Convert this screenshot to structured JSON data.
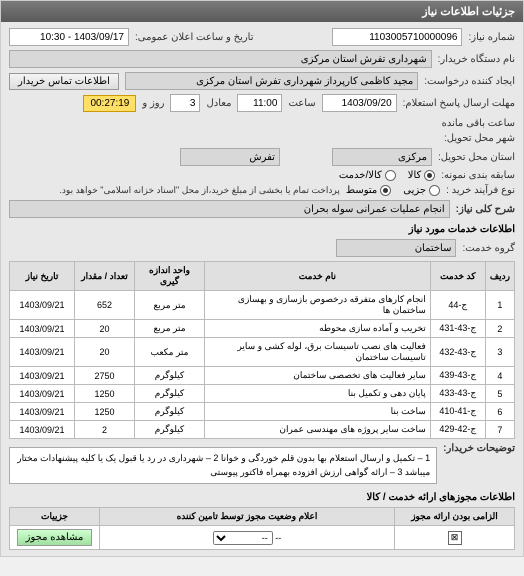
{
  "header": {
    "title": "جزئیات اطلاعات نیاز"
  },
  "info": {
    "req_no_label": "شماره نیاز:",
    "req_no": "1103005710000096",
    "announce_label": "تاریخ و ساعت اعلان عمومی:",
    "announce_value": "1403/09/17 - 10:30",
    "buyer_label": "نام دستگاه خریدار:",
    "buyer_value": "شهرداری تفرش استان مرکزی",
    "creator_label": "ایجاد کننده درخواست:",
    "creator_value": "مجید کاظمی کارپرداز شهرداری تفرش استان مرکزی",
    "contact_btn": "اطلاعات تماس خریدار",
    "deadline_label": "مهلت ارسال پاسخ استعلام:",
    "deadline_date": "1403/09/20",
    "time_label": "ساعت",
    "deadline_time": "11:00",
    "days_label": "معادل",
    "days_value": "3",
    "remaining_label": "روز و",
    "remaining_time": "00:27:19",
    "remaining_suffix": "ساعت باقی مانده",
    "delivery_place_label": "شهر محل تحویل:",
    "delivery_province_label": "استان محل تحویل:",
    "delivery_province": "مرکزی",
    "delivery_city": "تفرش",
    "sample_label": "سابقه بندی نمونه:",
    "sample_goods": "کالا",
    "sample_service": "کالا/خدمت",
    "purchase_type_label": "نوع فرآیند خرید :",
    "purchase_partial": "جزیی",
    "purchase_medium": "متوسط",
    "purchase_note": "پرداخت تمام یا بخشی از مبلغ خرید،از محل \"اسناد خزانه اسلامی\" خواهد بود.",
    "desc_label": "شرح کلی نیاز:",
    "desc_value": "انجام عملیات عمرانی سوله بحران"
  },
  "services": {
    "header": "اطلاعات خدمات مورد نیاز",
    "group_label": "گروه خدمت:",
    "group_value": "ساختمان",
    "columns": {
      "idx": "ردیف",
      "code": "کد خدمت",
      "name": "نام خدمت",
      "unit": "واحد اندازه گیری",
      "qty": "تعداد / مقدار",
      "date": "تاریخ نیاز"
    },
    "rows": [
      {
        "idx": "1",
        "code": "ج-44",
        "name": "انجام کارهای متفرقه درخصوص بازسازی و بهسازی ساختمان ها",
        "unit": "متر مربع",
        "qty": "652",
        "date": "1403/09/21"
      },
      {
        "idx": "2",
        "code": "ج-43-431",
        "name": "تخریب و آماده سازی محوطه",
        "unit": "متر مربع",
        "qty": "20",
        "date": "1403/09/21"
      },
      {
        "idx": "3",
        "code": "ج-43-432",
        "name": "فعالیت های نصب تاسیسات برق، لوله کشی و سایر تاسیسات ساختمان",
        "unit": "متر مکعب",
        "qty": "20",
        "date": "1403/09/21"
      },
      {
        "idx": "4",
        "code": "ج-43-439",
        "name": "سایر فعالیت های تخصصی ساختمان",
        "unit": "کیلوگرم",
        "qty": "2750",
        "date": "1403/09/21"
      },
      {
        "idx": "5",
        "code": "ج-43-433",
        "name": "پایان دهی و تکمیل بنا",
        "unit": "کیلوگرم",
        "qty": "1250",
        "date": "1403/09/21"
      },
      {
        "idx": "6",
        "code": "ج-41-410",
        "name": "ساخت بنا",
        "unit": "کیلوگرم",
        "qty": "1250",
        "date": "1403/09/21"
      },
      {
        "idx": "7",
        "code": "ج-42-429",
        "name": "ساخت سایر پروژه های مهندسی عمران",
        "unit": "کیلوگرم",
        "qty": "2",
        "date": "1403/09/21"
      }
    ],
    "notes_label": "توضیحات خریدار:",
    "notes": "1 – تکمیل و ارسال استعلام بها بدون قلم خوردگی و خوانا 2 – شهرداری در رد یا قبول یک یا کلیه پیشنهادات مختار میباشد 3 – ارائه گواهی ارزش افزوده بهمراه فاکتور پیوستی"
  },
  "auth": {
    "header": "اطلاعات مجوزهای ارائه خدمت / کالا",
    "columns": {
      "mandatory": "الزامی بودن ارائه مجوز",
      "status": "اعلام وضعیت مجوز توسط تامین کننده",
      "action": "جزییات"
    },
    "status_placeholder": "--",
    "dash": "--",
    "view_btn": "مشاهده مجوز"
  },
  "colors": {
    "header_bg": "#6a6a6a",
    "panel_bg": "#e8e8e8",
    "yellow": "#ffe066",
    "border": "#bbbbbb"
  }
}
